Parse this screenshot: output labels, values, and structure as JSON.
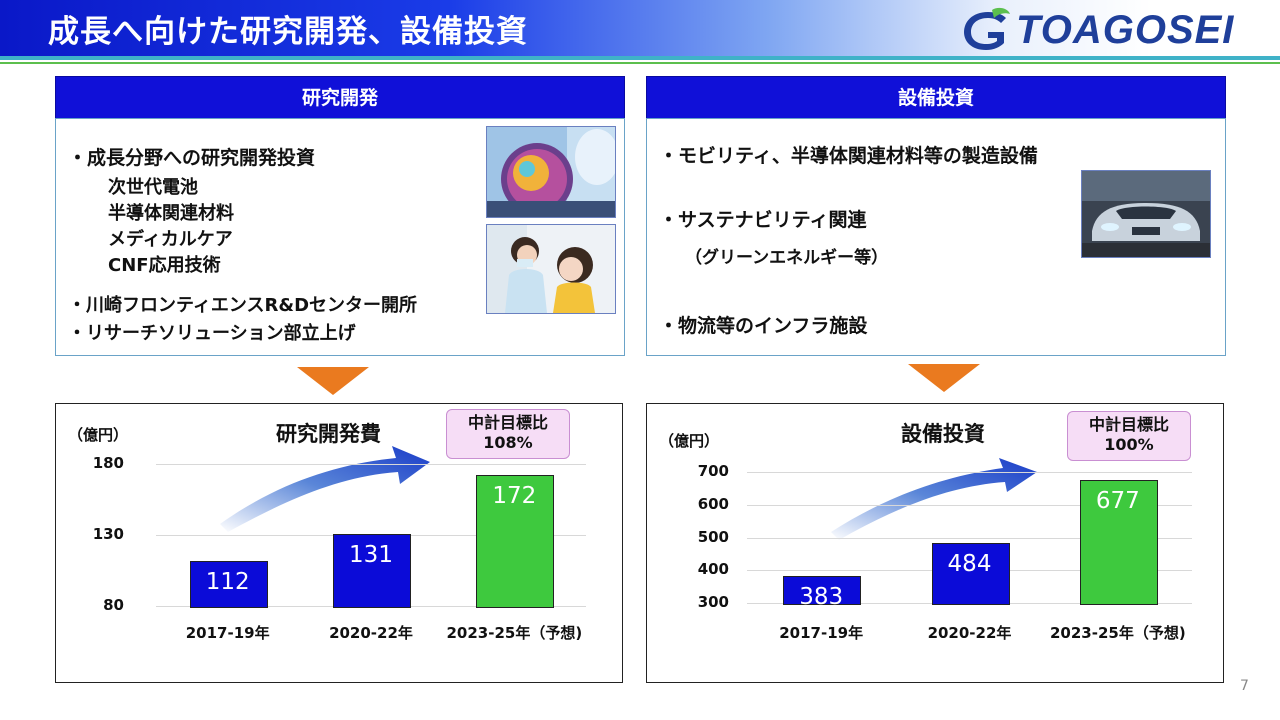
{
  "header": {
    "title": "成長へ向けた研究開発、設備投資",
    "logo_text": "TOAGOSEI"
  },
  "left_panel": {
    "heading": "研究開発",
    "bullet1": "・成長分野への研究開発投資",
    "sub_items": [
      "次世代電池",
      "半導体関連材料",
      "メディカルケア",
      "CNF応用技術"
    ],
    "bullet2": "・川崎フロンティエンスR&Dセンター開所",
    "bullet3": "・リサーチソリューション部立上げ"
  },
  "right_panel": {
    "heading": "設備投資",
    "bullet1": "・モビリティ、半導体関連材料等の製造設備",
    "bullet2": "・サステナビリティ関連",
    "bullet2_sub": "（グリーンエネルギー等）",
    "bullet3": "・物流等のインフラ施設"
  },
  "chart_data": [
    {
      "type": "bar",
      "title": "研究開発費",
      "unit": "（億円）",
      "target_label": "中計目標比",
      "target_value": "108%",
      "categories": [
        "2017-19年",
        "2020-22年",
        "2023-25年（予想)"
      ],
      "values": [
        112,
        131,
        172
      ],
      "bar_colors": [
        "#0b0bd8",
        "#0b0bd8",
        "#3ec93e"
      ],
      "yticks": [
        80,
        130,
        180
      ],
      "ylim": [
        80,
        180
      ]
    },
    {
      "type": "bar",
      "title": "設備投資",
      "unit": "（億円）",
      "target_label": "中計目標比",
      "target_value": "100%",
      "categories": [
        "2017-19年",
        "2020-22年",
        "2023-25年（予想)"
      ],
      "values": [
        383,
        484,
        677
      ],
      "bar_colors": [
        "#0b0bd8",
        "#0b0bd8",
        "#3ec93e"
      ],
      "yticks": [
        300,
        400,
        500,
        600,
        700
      ],
      "ylim": [
        300,
        700
      ]
    }
  ],
  "page_number": "7"
}
